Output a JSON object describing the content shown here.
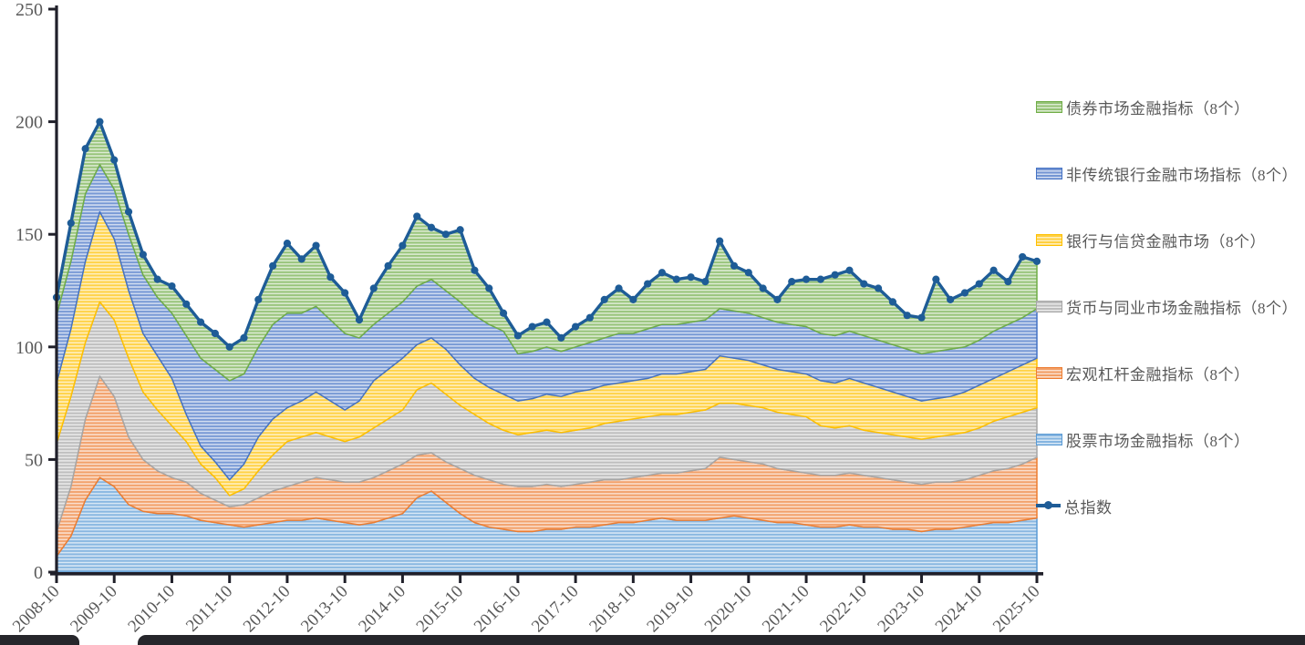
{
  "chart_data": {
    "type": "area",
    "subtype": "stacked-area-with-total-line",
    "title": "",
    "xlabel": "",
    "ylabel": "",
    "y_ticks": [
      0,
      50,
      100,
      150,
      200,
      250
    ],
    "y_range": [
      0,
      250
    ],
    "x_tick_every": 4,
    "x": [
      "2008-10",
      "2009-01",
      "2009-04",
      "2009-07",
      "2009-10",
      "2010-01",
      "2010-04",
      "2010-07",
      "2010-10",
      "2011-01",
      "2011-04",
      "2011-07",
      "2011-10",
      "2012-01",
      "2012-04",
      "2012-07",
      "2012-10",
      "2013-01",
      "2013-04",
      "2013-07",
      "2013-10",
      "2014-01",
      "2014-04",
      "2014-07",
      "2014-10",
      "2015-01",
      "2015-04",
      "2015-07",
      "2015-10",
      "2016-01",
      "2016-04",
      "2016-07",
      "2016-10",
      "2017-01",
      "2017-04",
      "2017-07",
      "2017-10",
      "2018-01",
      "2018-04",
      "2018-07",
      "2018-10",
      "2019-01",
      "2019-04",
      "2019-07",
      "2019-10",
      "2020-01",
      "2020-04",
      "2020-07",
      "2020-10",
      "2021-01",
      "2021-04",
      "2021-07",
      "2021-10",
      "2022-01",
      "2022-04",
      "2022-07",
      "2022-10",
      "2023-01",
      "2023-04",
      "2023-07",
      "2023-10",
      "2024-01",
      "2024-04",
      "2024-07",
      "2024-10",
      "2025-01",
      "2025-04",
      "2025-07",
      "2025-10"
    ],
    "x_axis_year_labels": [
      "2008-10",
      "2009-10",
      "2010-10",
      "2011-10",
      "2012-10",
      "2013-10",
      "2014-10",
      "2015-10",
      "2016-10",
      "2017-10",
      "2018-10",
      "2019-10",
      "2020-10",
      "2021-10",
      "2022-10",
      "2023-10",
      "2024-10",
      "2025-10"
    ],
    "stack_order_note": "series listed bottom-to-top of the stack; total line = sum of all six",
    "series": [
      {
        "key": "stocks",
        "name": "股票市场金融指标（8个）",
        "color": "#5B9BD5",
        "values": [
          7,
          16,
          32,
          42,
          38,
          30,
          27,
          26,
          26,
          25,
          23,
          22,
          21,
          20,
          21,
          22,
          23,
          23,
          24,
          23,
          22,
          21,
          22,
          24,
          26,
          33,
          36,
          31,
          26,
          22,
          20,
          19,
          18,
          18,
          19,
          19,
          20,
          20,
          21,
          22,
          22,
          23,
          24,
          23,
          23,
          23,
          24,
          25,
          24,
          23,
          22,
          22,
          21,
          20,
          20,
          21,
          20,
          20,
          19,
          19,
          18,
          19,
          19,
          20,
          21,
          22,
          22,
          23,
          24
        ]
      },
      {
        "key": "leverage",
        "name": "宏观杠杆金融指标（8个）",
        "color": "#ED7D31",
        "values": [
          11,
          22,
          36,
          45,
          40,
          30,
          23,
          19,
          16,
          15,
          12,
          10,
          8,
          10,
          12,
          14,
          15,
          17,
          18,
          18,
          18,
          19,
          20,
          21,
          22,
          19,
          17,
          18,
          20,
          21,
          21,
          20,
          20,
          20,
          20,
          19,
          19,
          20,
          20,
          19,
          20,
          20,
          20,
          21,
          22,
          23,
          27,
          25,
          25,
          25,
          24,
          23,
          23,
          23,
          23,
          23,
          23,
          22,
          22,
          21,
          21,
          21,
          21,
          21,
          22,
          23,
          24,
          25,
          27
        ]
      },
      {
        "key": "money",
        "name": "货币与同业市场金融指标（8个）",
        "color": "#A6A6A6",
        "values": [
          39,
          40,
          34,
          33,
          34,
          35,
          30,
          27,
          23,
          18,
          13,
          10,
          5,
          7,
          12,
          16,
          20,
          20,
          20,
          19,
          18,
          20,
          22,
          23,
          24,
          29,
          31,
          30,
          28,
          27,
          25,
          24,
          23,
          24,
          24,
          24,
          24,
          24,
          25,
          26,
          26,
          26,
          26,
          26,
          26,
          26,
          24,
          25,
          25,
          25,
          25,
          25,
          25,
          22,
          21,
          21,
          20,
          20,
          20,
          20,
          20,
          20,
          21,
          21,
          21,
          22,
          23,
          23,
          22
        ]
      },
      {
        "key": "banking",
        "name": "银行与信贷金融市场（8个）",
        "color": "#FFC000",
        "values": [
          27,
          30,
          36,
          40,
          36,
          30,
          26,
          24,
          21,
          12,
          8,
          7,
          7,
          11,
          15,
          16,
          15,
          16,
          18,
          16,
          14,
          16,
          21,
          22,
          23,
          20,
          20,
          20,
          18,
          16,
          16,
          16,
          15,
          15,
          16,
          16,
          17,
          17,
          17,
          17,
          17,
          17,
          18,
          18,
          18,
          18,
          21,
          20,
          20,
          19,
          19,
          19,
          19,
          20,
          20,
          21,
          21,
          20,
          19,
          18,
          17,
          17,
          17,
          18,
          19,
          19,
          20,
          21,
          22
        ]
      },
      {
        "key": "nonbank",
        "name": "非传统银行金融市场指标（8个）",
        "color": "#4472C4",
        "values": [
          30,
          30,
          30,
          21,
          22,
          25,
          26,
          26,
          29,
          35,
          39,
          41,
          44,
          40,
          40,
          42,
          42,
          39,
          38,
          36,
          34,
          28,
          25,
          25,
          25,
          26,
          26,
          26,
          28,
          28,
          28,
          28,
          21,
          21,
          21,
          20,
          20,
          21,
          21,
          22,
          21,
          22,
          22,
          22,
          22,
          22,
          21,
          21,
          21,
          21,
          21,
          21,
          21,
          21,
          21,
          21,
          21,
          21,
          21,
          21,
          21,
          21,
          21,
          20,
          20,
          21,
          21,
          21,
          22
        ]
      },
      {
        "key": "bond",
        "name": "债券市场金融指标（8个）",
        "color": "#70AD47",
        "values": [
          8,
          17,
          20,
          19,
          13,
          10,
          9,
          8,
          12,
          14,
          16,
          16,
          15,
          16,
          21,
          26,
          31,
          24,
          27,
          19,
          18,
          8,
          16,
          21,
          25,
          31,
          23,
          25,
          32,
          20,
          16,
          8,
          8,
          11,
          11,
          6,
          9,
          11,
          17,
          20,
          15,
          20,
          23,
          20,
          20,
          17,
          30,
          20,
          18,
          13,
          10,
          19,
          21,
          24,
          27,
          27,
          23,
          23,
          19,
          15,
          16,
          32,
          22,
          24,
          25,
          27,
          19,
          27,
          21
        ]
      }
    ],
    "total_line": {
      "name": "总指数",
      "color": "#1E5C97",
      "definition": "sum of the six stacked series"
    },
    "legend_position": "right",
    "grid": false
  },
  "legend": {
    "items": [
      {
        "key": "bond",
        "label": "债券市场金融指标（8个）",
        "swatch": "striped-green"
      },
      {
        "key": "nonbank",
        "label": "非传统银行金融市场指标（8个）",
        "swatch": "striped-blue"
      },
      {
        "key": "banking",
        "label": "银行与信贷金融市场（8个）",
        "swatch": "striped-yellow"
      },
      {
        "key": "money",
        "label": "货币与同业市场金融指标（8个）",
        "swatch": "striped-gray"
      },
      {
        "key": "leverage",
        "label": "宏观杠杆金融指标（8个）",
        "swatch": "striped-orange"
      },
      {
        "key": "stocks",
        "label": "股票市场金融指标（8个）",
        "swatch": "striped-lightblue"
      },
      {
        "key": "total",
        "label": "总指数",
        "swatch": "line-with-dot"
      }
    ]
  },
  "axis": {
    "line_color": "#20202a",
    "tick_label_color": "#595959"
  },
  "window": {
    "bottom_edge_color": "#26262b"
  }
}
